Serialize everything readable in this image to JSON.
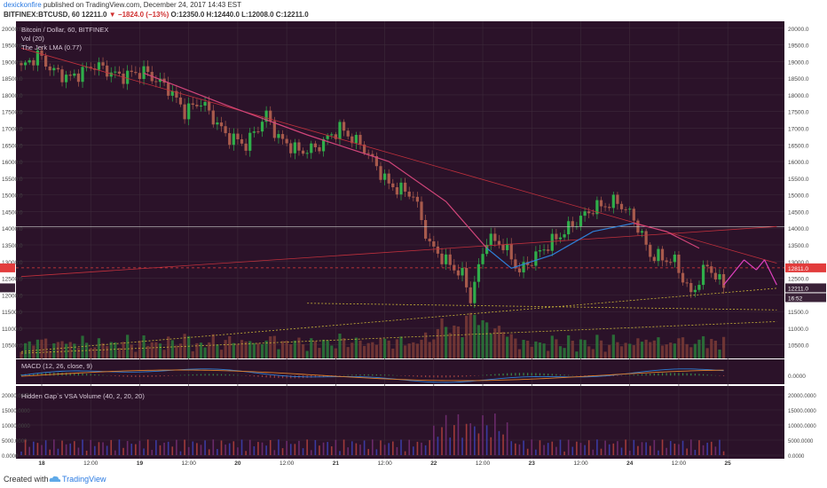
{
  "header": {
    "author": "dexickonfire",
    "published": " published on TradingView.com, December 24, 2017 14:43 EST",
    "symbol": "BITFINEX:BTCUSD, 60",
    "last": "12211.0",
    "change": "▼ −1824.0 (−13%)",
    "ohlc": "O:12350.0 H:12440.0 L:12008.0 C:12211.0"
  },
  "colors": {
    "background": "#2b1229",
    "grid": "#3d2a3a",
    "bull": "#2fae4a",
    "bear": "#a85a4c",
    "lma": "#d2457a",
    "lma_blue": "#2f7fd6",
    "trend": "#c0303c",
    "support": "#c8b438",
    "annot": "#e040c0",
    "macd": "#2f7fd6",
    "signal": "#e0802c",
    "price_tag": "#e23c3c"
  },
  "legend": {
    "title": "Bitcoin / Dollar, 60, BITFINEX",
    "vol": "Vol (20)",
    "lma": "The Jerk LMA (0.77)",
    "macd": "MACD (12, 26, close, 9)",
    "vsa": "Hidden Gap`s VSA Volume (40, 2, 20, 20)"
  },
  "price_axis": {
    "ticks": [
      "20000.0",
      "19500.0",
      "19000.0",
      "18500.0",
      "18000.0",
      "17500.0",
      "17000.0",
      "16500.0",
      "16000.0",
      "15500.0",
      "15000.0",
      "14500.0",
      "14000.0",
      "13500.0",
      "13000.0",
      "12500.0",
      "12000.0",
      "11500.0",
      "11000.0",
      "10500.0"
    ],
    "current_label": "12211.0",
    "alt_label": "12811.0",
    "countdown": "16:52"
  },
  "macd_axis": {
    "ticks": [
      "0.0000"
    ]
  },
  "vsa_axis": {
    "ticks": [
      "20000.0000",
      "15000.0000",
      "10000.0000",
      "5000.0000",
      "0.0000"
    ]
  },
  "time_axis": {
    "labels": [
      "18",
      "12:00",
      "19",
      "12:00",
      "20",
      "12:00",
      "21",
      "12:00",
      "22",
      "12:00",
      "23",
      "12:00",
      "24",
      "12:00",
      "25"
    ]
  },
  "footer": {
    "created": "Created with",
    "brand": "TradingView"
  },
  "chart_data": {
    "type": "line",
    "title": "Bitcoin / Dollar, 60, BITFINEX",
    "interval": "60",
    "ylim": [
      10200,
      20100
    ],
    "x_range_hours": [
      "Dec 17 ~19:00",
      "Dec 25 ~12:00"
    ],
    "x_labels": [
      "18",
      "12:00",
      "19",
      "12:00",
      "20",
      "12:00",
      "21",
      "12:00",
      "22",
      "12:00",
      "23",
      "12:00",
      "24",
      "12:00",
      "25"
    ],
    "price_anchors": [
      {
        "hour": 0,
        "close": 18800
      },
      {
        "hour": 4,
        "close": 19200
      },
      {
        "hour": 8,
        "close": 18700
      },
      {
        "hour": 12,
        "close": 18500
      },
      {
        "hour": 18,
        "close": 18900
      },
      {
        "hour": 24,
        "close": 18550
      },
      {
        "hour": 30,
        "close": 18700
      },
      {
        "hour": 36,
        "close": 18200
      },
      {
        "hour": 40,
        "close": 17500
      },
      {
        "hour": 44,
        "close": 17800
      },
      {
        "hour": 50,
        "close": 16800
      },
      {
        "hour": 55,
        "close": 16500
      },
      {
        "hour": 60,
        "close": 17400
      },
      {
        "hour": 63,
        "close": 16700
      },
      {
        "hour": 68,
        "close": 16300
      },
      {
        "hour": 72,
        "close": 16400
      },
      {
        "hour": 78,
        "close": 17000
      },
      {
        "hour": 84,
        "close": 16400
      },
      {
        "hour": 90,
        "close": 15300
      },
      {
        "hour": 96,
        "close": 15000
      },
      {
        "hour": 100,
        "close": 13500
      },
      {
        "hour": 104,
        "close": 13000
      },
      {
        "hour": 108,
        "close": 12600
      },
      {
        "hour": 110,
        "close": 11900
      },
      {
        "hour": 114,
        "close": 13700
      },
      {
        "hour": 118,
        "close": 13500
      },
      {
        "hour": 122,
        "close": 12700
      },
      {
        "hour": 128,
        "close": 13400
      },
      {
        "hour": 134,
        "close": 14000
      },
      {
        "hour": 140,
        "close": 14600
      },
      {
        "hour": 146,
        "close": 14800
      },
      {
        "hour": 150,
        "close": 14300
      },
      {
        "hour": 154,
        "close": 13200
      },
      {
        "hour": 160,
        "close": 13000
      },
      {
        "hour": 164,
        "close": 12000
      },
      {
        "hour": 168,
        "close": 12900
      },
      {
        "hour": 172,
        "close": 12211
      }
    ],
    "last": {
      "open": 12350,
      "high": 12440,
      "low": 12008,
      "close": 12211,
      "change": -1824,
      "change_pct": -13
    },
    "lma": [
      {
        "hour": 30,
        "value": 18650
      },
      {
        "hour": 50,
        "value": 17700
      },
      {
        "hour": 70,
        "value": 16800
      },
      {
        "hour": 90,
        "value": 16000
      },
      {
        "hour": 104,
        "value": 14800
      },
      {
        "hour": 114,
        "value": 13400
      },
      {
        "hour": 120,
        "value": 12800
      },
      {
        "hour": 130,
        "value": 13200
      },
      {
        "hour": 140,
        "value": 13900
      },
      {
        "hour": 150,
        "value": 14150
      },
      {
        "hour": 158,
        "value": 13900
      },
      {
        "hour": 166,
        "value": 13400
      }
    ],
    "levels": {
      "horizontal": 14050,
      "dashed": 12811
    },
    "trendlines": [
      {
        "from": {
          "hour": 0,
          "price": 19400
        },
        "to": {
          "hour": 185,
          "price": 12950
        }
      },
      {
        "from": {
          "hour": 0,
          "price": 12550
        },
        "to": {
          "hour": 185,
          "price": 14050
        }
      },
      {
        "from": {
          "hour": 0,
          "price": 10300
        },
        "to": {
          "hour": 185,
          "price": 12200
        }
      },
      {
        "from": {
          "hour": 70,
          "price": 11750
        },
        "to": {
          "hour": 185,
          "price": 11550
        }
      },
      {
        "from": {
          "hour": 0,
          "price": 10250
        },
        "to": {
          "hour": 185,
          "price": 11200
        }
      }
    ],
    "projection": [
      {
        "hour": 172,
        "price": 12300
      },
      {
        "hour": 177,
        "price": 13050
      },
      {
        "hour": 180,
        "price": 12750
      },
      {
        "hour": 182,
        "price": 13050
      },
      {
        "hour": 185,
        "price": 12300
      }
    ]
  }
}
